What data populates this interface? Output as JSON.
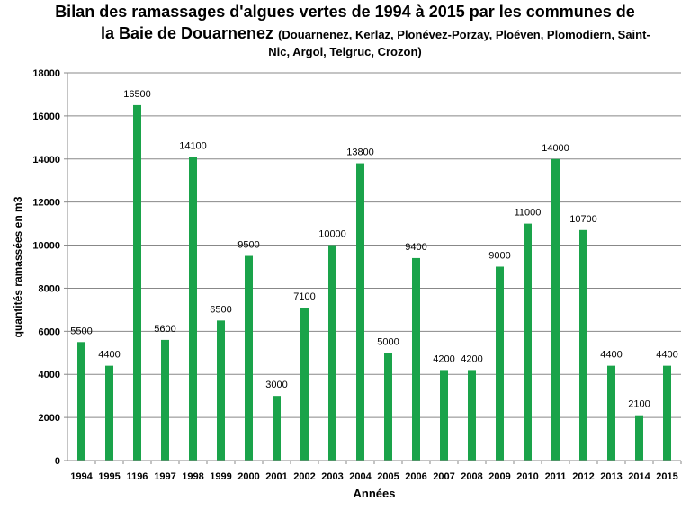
{
  "chart_data": {
    "type": "bar",
    "title": "Bilan des ramassages d'algues vertes de 1994 à 2015 par les communes de",
    "title_line2": "la Baie de Douarnenez",
    "subtitle_part1": "(Douarnenez, Kerlaz, Plonévez-Porzay, Ploéven, Plomodiern, Saint-",
    "subtitle_part2": "Nic, Argol, Telgruc, Crozon)",
    "xlabel": "Années",
    "ylabel": "quantités ramassées en m3",
    "ylim": [
      0,
      18000
    ],
    "y_ticks": [
      0,
      2000,
      4000,
      6000,
      8000,
      10000,
      12000,
      14000,
      16000,
      18000
    ],
    "grid": true,
    "bar_color": "#1aa34a",
    "categories": [
      "1994",
      "1995",
      "1196",
      "1997",
      "1998",
      "1999",
      "2000",
      "2001",
      "2002",
      "2003",
      "2004",
      "2005",
      "2006",
      "2007",
      "2008",
      "2009",
      "2010",
      "2011",
      "2012",
      "2013",
      "2014",
      "2015"
    ],
    "values": [
      5500,
      4400,
      16500,
      5600,
      14100,
      6500,
      9500,
      3000,
      7100,
      10000,
      13800,
      5000,
      9400,
      4200,
      4200,
      9000,
      11000,
      14000,
      10700,
      4400,
      2100,
      4400
    ]
  }
}
